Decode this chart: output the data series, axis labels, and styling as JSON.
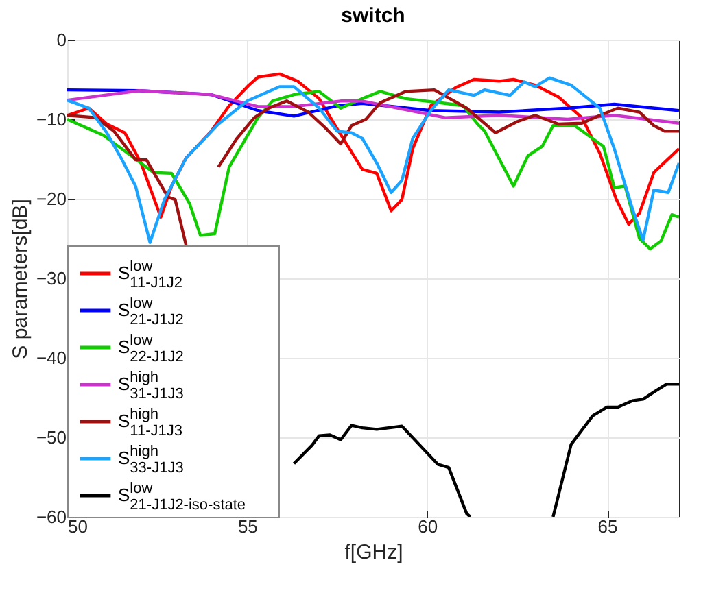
{
  "chart_data": {
    "type": "line",
    "title": "switch",
    "xlabel": "f[GHz]",
    "ylabel": "S parameters[dB]",
    "xlim": [
      50,
      67
    ],
    "ylim": [
      -60,
      0
    ],
    "xticks": [
      50,
      55,
      60,
      65
    ],
    "yticks": [
      -60,
      -50,
      -40,
      -30,
      -20,
      -10,
      0
    ],
    "grid": true,
    "legend": "bottom left",
    "line_style": "solid",
    "marker": "none",
    "series": [
      {
        "name": "S$^{low}$$_{11-J1J2}$",
        "color": "#ff0000",
        "x": [
          50,
          50.6,
          51.1,
          51.6,
          52.05,
          52.6,
          52.9,
          53.3,
          54.0,
          54.5,
          55.05,
          55.3,
          55.9,
          56.4,
          57.0,
          57.5,
          58.2,
          58.6,
          59.0,
          59.3,
          59.6,
          60.1,
          60.8,
          61.3,
          62.0,
          62.4,
          63.0,
          63.65,
          64.3,
          64.8,
          65.25,
          65.6,
          65.9,
          66.3,
          67.0
        ],
        "values": [
          -9.5,
          -8.6,
          -10.6,
          -11.7,
          -15.5,
          -22.3,
          -18.4,
          -14.9,
          -11.5,
          -8.3,
          -5.7,
          -4.7,
          -4.3,
          -5.2,
          -7.4,
          -11.2,
          -16.3,
          -16.8,
          -21.5,
          -20.1,
          -13.7,
          -8.3,
          -6,
          -5,
          -5.2,
          -5,
          -5.7,
          -7.2,
          -9.8,
          -14.3,
          -20,
          -23.2,
          -21.8,
          -16.7,
          -13.7
        ]
      },
      {
        "name": "S$^{low}$$_{21-J1J2}$",
        "color": "#0000ff",
        "x": [
          50,
          52,
          54,
          55.3,
          56.3,
          57.5,
          58.2,
          60.1,
          62,
          63.9,
          65.2,
          67
        ],
        "values": [
          -6.3,
          -6.4,
          -6.9,
          -8.9,
          -9.6,
          -8.3,
          -8.0,
          -8.9,
          -9.1,
          -8.6,
          -8.1,
          -8.9
        ]
      },
      {
        "name": "S$^{low}$$_{22-J1J2}$",
        "color": "#11cc00",
        "x": [
          50,
          51,
          51.9,
          52.4,
          52.9,
          53.4,
          53.7,
          54.1,
          54.5,
          55.3,
          55.7,
          56.3,
          57,
          57.6,
          58.2,
          58.7,
          59.4,
          60.5,
          61,
          61.4,
          61.6,
          62.4,
          62.8,
          63.2,
          63.5,
          64.1,
          64.9,
          65.2,
          65.5,
          65.9,
          66.2,
          66.5,
          66.8,
          67
        ],
        "values": [
          -10,
          -12,
          -15,
          -16.7,
          -16.8,
          -20.6,
          -24.6,
          -24.4,
          -16,
          -9.8,
          -7.7,
          -6.9,
          -6.5,
          -8.6,
          -7.4,
          -6.5,
          -7.4,
          -8.0,
          -8.3,
          -10.6,
          -11.5,
          -18.4,
          -14.6,
          -13.4,
          -10.8,
          -10.8,
          -13.4,
          -18.6,
          -18.4,
          -25,
          -26.3,
          -25.3,
          -22,
          -22.3
        ]
      },
      {
        "name": "S$^{high}$$_{31-J1J3}$",
        "color": "#cc33cc",
        "x": [
          50,
          52,
          54,
          55.3,
          56.3,
          57.6,
          58.2,
          60.5,
          62,
          63.9,
          65.2,
          67
        ],
        "values": [
          -7.6,
          -6.4,
          -6.9,
          -8.4,
          -8.4,
          -7.7,
          -7.7,
          -9.8,
          -9.5,
          -10,
          -9.5,
          -10.5
        ]
      },
      {
        "name": "S$^{high}$$_{11-J1J3}$",
        "color": "#a01010",
        "x": [
          50,
          50.8,
          51.3,
          51.9,
          52.2,
          52.8,
          53.0,
          53.3,
          53.7,
          54.2,
          54.7,
          55.2,
          55.6,
          56.1,
          56.7,
          57.2,
          57.6,
          57.9,
          58.3,
          58.7,
          59.4,
          60.2,
          61.1,
          61.9,
          62.5,
          63.0,
          63.65,
          64.3,
          64.8,
          65.3,
          65.9,
          66.3,
          66.6,
          67
        ],
        "values": [
          -9.5,
          -9.8,
          -11.5,
          -15.1,
          -15.1,
          -19.8,
          -20.1,
          -25.8,
          null,
          -16,
          -12.5,
          -9.8,
          -8.6,
          -7.7,
          -9.1,
          -11.2,
          -13.1,
          -10.8,
          -10,
          -7.9,
          -6.5,
          -6.3,
          -8.6,
          -11.7,
          -10.3,
          -9.5,
          -10.6,
          -10.5,
          -9.5,
          -8.6,
          -9.1,
          -10.8,
          -11.5,
          -11.5
        ]
      },
      {
        "name": "S$^{high}$$_{33-J1J3}$",
        "color": "#1aa3ff",
        "x": [
          50,
          50.6,
          51.1,
          51.5,
          51.9,
          52.3,
          52.7,
          53.3,
          54.2,
          55.0,
          55.9,
          56.3,
          57.0,
          57.5,
          57.9,
          58.2,
          58.6,
          59.0,
          59.3,
          59.6,
          60.1,
          60.6,
          61.3,
          61.6,
          62.3,
          62.7,
          63.0,
          63.4,
          64.0,
          64.8,
          65.2,
          65.7,
          66.0,
          66.3,
          66.7,
          67
        ],
        "values": [
          -7.6,
          -8.6,
          -11.7,
          -14.9,
          -18.4,
          -25.5,
          -20.1,
          -14.9,
          -10.6,
          -7.7,
          -5.9,
          -5.9,
          -8.6,
          -11.5,
          -11.7,
          -12.4,
          -15.5,
          -19.2,
          -17.7,
          -12.4,
          -8.9,
          -6.3,
          -7.0,
          -6.3,
          -7.0,
          -5.3,
          -5.9,
          -4.8,
          -5.7,
          -8.6,
          -13.7,
          -21.2,
          -25.2,
          -18.9,
          -19.2,
          -15.5
        ]
      },
      {
        "name": "S$^{low}$$_{21-J1J2-iso-state}$",
        "color": "#000000",
        "x": [
          56.3,
          56.8,
          57.0,
          57.3,
          57.6,
          57.9,
          58.2,
          58.6,
          59.3,
          60.3,
          60.6,
          61.1,
          61.2,
          62.3,
          63.5,
          64.0,
          64.6,
          65.0,
          65.3,
          65.7,
          66.0,
          66.3,
          66.65,
          67
        ],
        "values": [
          -53.3,
          -51,
          -49.8,
          -49.7,
          -50.3,
          -48.5,
          -48.8,
          -49,
          -48.6,
          -53.4,
          -53.8,
          -59.6,
          -60,
          null,
          -60,
          -50.9,
          -47.3,
          -46.2,
          -46.2,
          -45.4,
          -45.2,
          -44.3,
          -43.3,
          -43.3
        ]
      }
    ]
  }
}
